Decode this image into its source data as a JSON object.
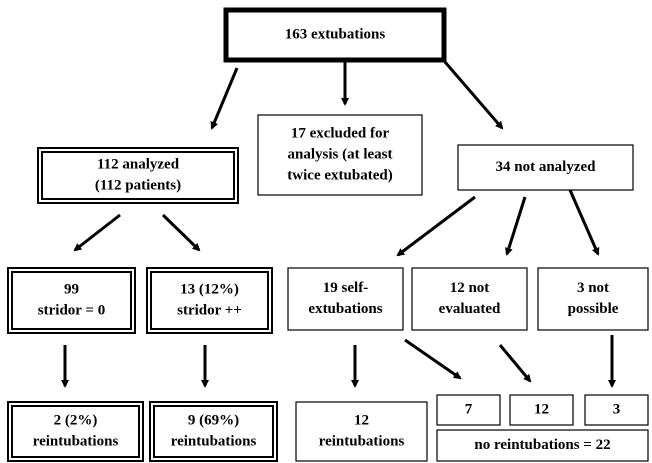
{
  "nodes": [
    {
      "lines": [
        "163 extubations"
      ]
    },
    {
      "lines": [
        "112 analyzed",
        "(112 patients)"
      ]
    },
    {
      "lines": [
        "17 excluded for",
        "analysis (at least",
        "twice extubated)"
      ]
    },
    {
      "lines": [
        "34 not analyzed"
      ]
    },
    {
      "lines": [
        "99",
        "stridor = 0"
      ]
    },
    {
      "lines": [
        "13 (12%)",
        "stridor ++"
      ]
    },
    {
      "lines": [
        "19 self-",
        "extubations"
      ]
    },
    {
      "lines": [
        "12 not",
        "evaluated"
      ]
    },
    {
      "lines": [
        "3 not",
        "possible"
      ]
    },
    {
      "lines": [
        "2 (2%)",
        "reintubations"
      ]
    },
    {
      "lines": [
        "9 (69%)",
        "reintubations"
      ]
    },
    {
      "lines": [
        "12",
        "reintubations"
      ]
    },
    {
      "lines": [
        "7"
      ]
    },
    {
      "lines": [
        "12"
      ]
    },
    {
      "lines": [
        "3"
      ]
    },
    {
      "lines": [
        "no reintubations = 22"
      ]
    }
  ]
}
